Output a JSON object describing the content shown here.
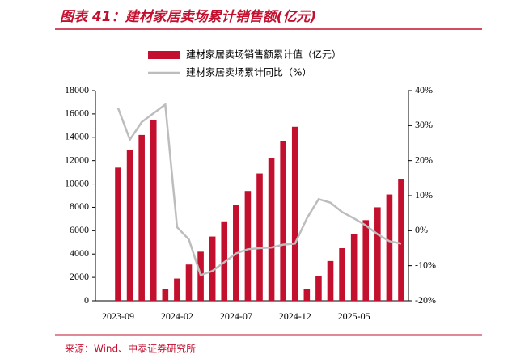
{
  "chart_data": {
    "type": "bar_line",
    "title": "图表 41：建材家居卖场累计销售额(亿元)",
    "source": "来源：Wind、中泰证券研究所",
    "categories": [
      "2023-09",
      null,
      null,
      null,
      null,
      "2024-02",
      null,
      null,
      null,
      null,
      "2024-07",
      null,
      null,
      null,
      null,
      "2024-12",
      null,
      null,
      null,
      null,
      "2025-05",
      null,
      null,
      null,
      null
    ],
    "series": [
      {
        "name": "建材家居卖场销售额累计值（亿元）",
        "type": "bar",
        "color": "#c3102f",
        "values": [
          11400,
          12900,
          14200,
          15500,
          1000,
          1900,
          3100,
          4200,
          5500,
          6800,
          8200,
          9400,
          10900,
          12200,
          13700,
          14900,
          1000,
          2100,
          3400,
          4500,
          5700,
          6900,
          8000,
          9100,
          10400
        ]
      },
      {
        "name": "建材家居卖场累计同比（%）",
        "type": "line",
        "color": "#bdbdbd",
        "axis": "y2",
        "values": [
          35,
          26,
          31,
          33.5,
          36,
          1,
          -2.5,
          -12.7,
          -11.5,
          -9,
          -6.5,
          -5.3,
          -5,
          -4.8,
          -4,
          -3.7,
          3.5,
          9,
          8,
          5.3,
          3.5,
          1.5,
          -1,
          -3,
          -3.7
        ]
      }
    ],
    "ylim": [
      0,
      18000
    ],
    "yticks": [
      0,
      2000,
      4000,
      6000,
      8000,
      10000,
      12000,
      14000,
      16000,
      18000
    ],
    "y2lim": [
      -20,
      40
    ],
    "y2ticks": [
      {
        "value": -20,
        "label": "-20%"
      },
      {
        "value": -10,
        "label": "-10%"
      },
      {
        "value": 0,
        "label": "0%"
      },
      {
        "value": 10,
        "label": "10%"
      },
      {
        "value": 20,
        "label": "20%"
      },
      {
        "value": 30,
        "label": "30%"
      },
      {
        "value": 40,
        "label": "40%"
      }
    ],
    "grid": false
  }
}
